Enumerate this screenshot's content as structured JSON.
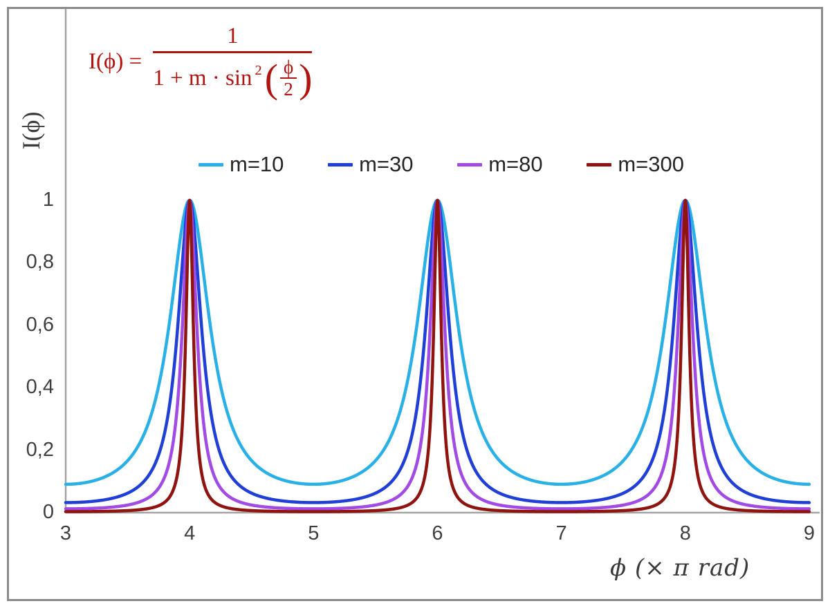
{
  "formula": {
    "lhs": "I(ϕ) =",
    "numerator": "1",
    "den_prefix": "1 + m · sin",
    "den_sup": "2",
    "lparen": "(",
    "rparen": ")",
    "inner_num": "ϕ",
    "inner_den": "2",
    "color": "#b01310"
  },
  "axes": {
    "y_label": "I(ϕ)",
    "x_label": "ϕ  (× π rad)",
    "y_ticks": [
      "0",
      "0,2",
      "0,4",
      "0,6",
      "0,8",
      "1"
    ],
    "y_tick_values": [
      0,
      0.2,
      0.4,
      0.6,
      0.8,
      1
    ],
    "x_ticks": [
      "3",
      "4",
      "5",
      "6",
      "7",
      "8",
      "9"
    ],
    "x_tick_values": [
      3,
      4,
      5,
      6,
      7,
      8,
      9
    ],
    "axis_color": "#a3a3a3",
    "tick_text_color": "#3f3f3f"
  },
  "chart_data": {
    "type": "line",
    "title": "",
    "function": "I(phi) = 1 / (1 + m * sin^2(phi/2))",
    "x_unit": "pi rad",
    "xlabel": "ϕ (× π rad)",
    "ylabel": "I(ϕ)",
    "x_range": [
      3,
      9
    ],
    "y_range": [
      0,
      1
    ],
    "grid": false,
    "legend_position": "top-center",
    "peaks_at_x": [
      4,
      6,
      8
    ],
    "peak_value": 1,
    "series": [
      {
        "name": "m=10",
        "m": 10,
        "color": "#29b0e6",
        "min_value": 0.091
      },
      {
        "name": "m=30",
        "m": 30,
        "color": "#1f3fd6",
        "min_value": 0.032
      },
      {
        "name": "m=80",
        "m": 80,
        "color": "#a14ae4",
        "min_value": 0.012
      },
      {
        "name": "m=300",
        "m": 300,
        "color": "#8f1410",
        "min_value": 0.003
      }
    ],
    "border_color": "#8a8a8a"
  }
}
